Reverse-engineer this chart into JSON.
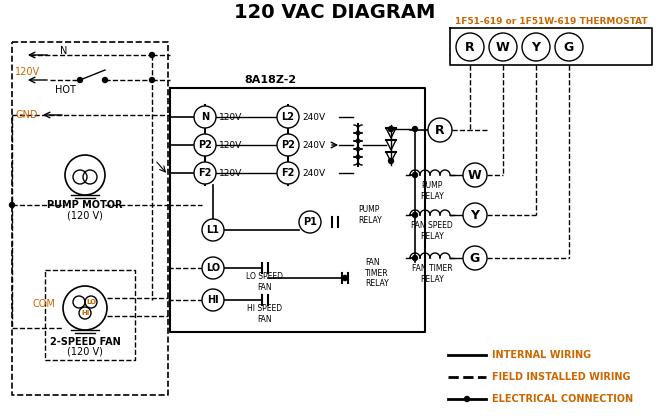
{
  "title": "120 VAC DIAGRAM",
  "title_color": "#000000",
  "title_fontsize": 14,
  "bg_color": "#ffffff",
  "thermostat_label": "1F51-619 or 1F51W-619 THERMOSTAT",
  "thermostat_terminals": [
    "R",
    "W",
    "Y",
    "G"
  ],
  "control_box_label": "8A18Z-2",
  "left_terminals_top": [
    "N",
    "P2",
    "F2"
  ],
  "left_voltages_top": [
    "120V",
    "120V",
    "120V"
  ],
  "right_terminals_top": [
    "L2",
    "P2",
    "F2"
  ],
  "right_voltages_top": [
    "240V",
    "240V",
    "240V"
  ],
  "legend_items": [
    {
      "label": "INTERNAL WIRING",
      "style": "solid"
    },
    {
      "label": "FIELD INSTALLED WIRING",
      "style": "dashed"
    },
    {
      "label": "ELECTRICAL CONNECTION",
      "style": "connection"
    }
  ],
  "orange_color": "#cc6600",
  "line_color": "#000000",
  "pump_motor_label1": "PUMP MOTOR",
  "pump_motor_label2": "(120 V)",
  "fan_label1": "2-SPEED FAN",
  "fan_label2": "(120 V)"
}
